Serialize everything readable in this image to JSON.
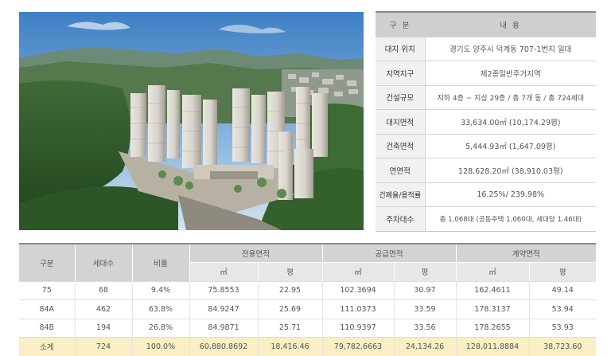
{
  "summary": {
    "header": {
      "category": "구 분",
      "content": "내 용"
    },
    "rows": [
      {
        "label": "대지 위치",
        "value": "경기도 양주시 덕계동 707-1번지 일대"
      },
      {
        "label": "지역지구",
        "value": "제2종일반주거지역"
      },
      {
        "label": "건설규모",
        "value": "지하 4층 ~ 지상 29층 / 총 7개 동 / 총 724세대"
      },
      {
        "label": "대지면적",
        "value": "33,634.00㎡ (10,174.29평)"
      },
      {
        "label": "건축면적",
        "value": "5,444.93㎡ (1,647.09평)"
      },
      {
        "label": "연면적",
        "value": "128,628.20㎡ (38,910.03평)"
      },
      {
        "label": "건폐율/용적률",
        "value": "16.25%/ 239.98%"
      },
      {
        "label": "주차대수",
        "value": "총 1,068대 (공동주택 1,060대, 세대당 1.46대)"
      }
    ]
  },
  "units": {
    "headers": {
      "type": "구분",
      "households": "세대수",
      "ratio": "비율",
      "exclusive_area": "전용면적",
      "supply_area": "공급면적",
      "contract_area": "계약면적",
      "unit_m2": "㎡",
      "unit_pyeong": "평"
    },
    "rows": [
      {
        "type": "75",
        "households": "68",
        "ratio": "9.4%",
        "excl_m2": "75.8553",
        "excl_py": "22.95",
        "supply_m2": "102.3694",
        "supply_py": "30.97",
        "contract_m2": "162.4611",
        "contract_py": "49.14"
      },
      {
        "type": "84A",
        "households": "462",
        "ratio": "63.8%",
        "excl_m2": "84.9247",
        "excl_py": "25.69",
        "supply_m2": "111.0373",
        "supply_py": "33.59",
        "contract_m2": "178.3137",
        "contract_py": "53.94"
      },
      {
        "type": "84B",
        "households": "194",
        "ratio": "26.8%",
        "excl_m2": "84.9871",
        "excl_py": "25.71",
        "supply_m2": "110.9397",
        "supply_py": "33.56",
        "contract_m2": "178.2655",
        "contract_py": "53.93"
      }
    ],
    "total": {
      "type": "소계",
      "households": "724",
      "ratio": "100.0%",
      "excl_m2": "60,880.8692",
      "excl_py": "18,416.46",
      "supply_m2": "79,782.6663",
      "supply_py": "24,134.26",
      "contract_m2": "128,011.8884",
      "contract_py": "38,723.60"
    }
  },
  "colors": {
    "header_bg": "#d3d3d3",
    "label_bg": "#f1f1f1",
    "total_row_bg": "#faeec4",
    "header_rule": "#8a8a8a"
  }
}
